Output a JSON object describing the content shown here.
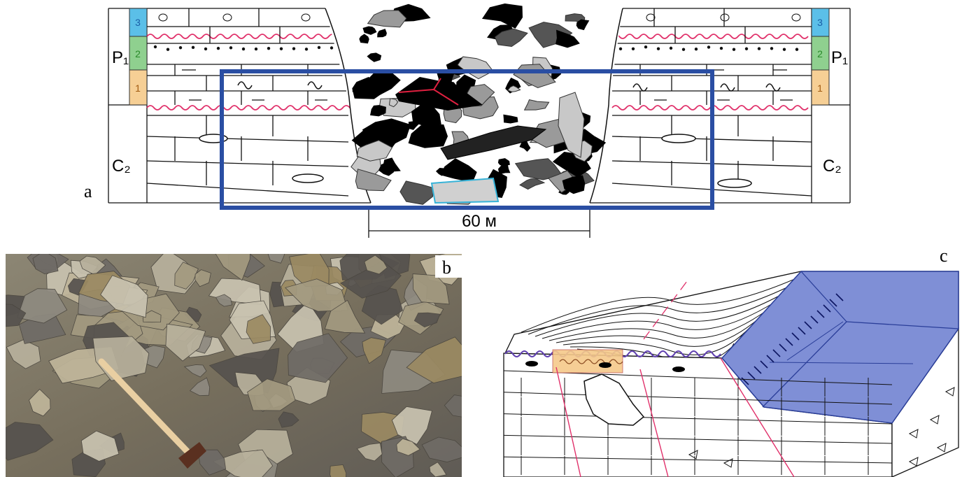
{
  "panels": {
    "a": {
      "label": "a",
      "scale": "60 м",
      "left": {
        "age_upper": "P₁",
        "age_lower": "C₂",
        "layers": [
          "3",
          "2",
          "1"
        ]
      },
      "right": {
        "age_upper": "P₁",
        "age_lower": "C₂",
        "layers": [
          "3",
          "2",
          "1"
        ]
      }
    },
    "b": {
      "label": "b"
    },
    "c": {
      "label": "c"
    }
  }
}
